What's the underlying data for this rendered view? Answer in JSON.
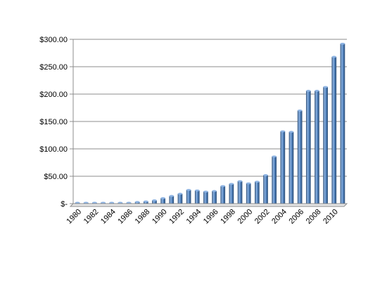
{
  "chart_data": {
    "type": "bar",
    "title": "",
    "xlabel": "",
    "ylabel": "",
    "categories": [
      "1980",
      "1981",
      "1982",
      "1983",
      "1984",
      "1985",
      "1986",
      "1987",
      "1988",
      "1989",
      "1990",
      "1991",
      "1992",
      "1993",
      "1994",
      "1995",
      "1996",
      "1997",
      "1998",
      "1999",
      "2000",
      "2001",
      "2002",
      "2003",
      "2004",
      "2005",
      "2006",
      "2007",
      "2008",
      "2009",
      "2010",
      "2011"
    ],
    "x_tick_labels": [
      "1980",
      "1982",
      "1984",
      "1986",
      "1988",
      "1990",
      "1992",
      "1994",
      "1996",
      "1998",
      "2000",
      "2002",
      "2004",
      "2006",
      "2008",
      "2010"
    ],
    "values": [
      0.5,
      0.5,
      0.5,
      0.5,
      0.5,
      0.5,
      1,
      3,
      4,
      6,
      10,
      14,
      18,
      25,
      24,
      22,
      23,
      32,
      36,
      41,
      37,
      40,
      52,
      86,
      132,
      131,
      170,
      206,
      206,
      213,
      268,
      292
    ],
    "ylim": [
      0,
      300
    ],
    "y_ticks": [
      0,
      50,
      100,
      150,
      200,
      250,
      300
    ],
    "y_tick_labels": [
      "$-",
      "$50.00",
      "$100.00",
      "$150.00",
      "$200.00",
      "$250.00",
      "$300.00"
    ],
    "grid": true,
    "legend": "none",
    "bar_color": "#4f81bd",
    "bar_dark": "#2c4d75",
    "bar_light": "#8eb4e3"
  }
}
